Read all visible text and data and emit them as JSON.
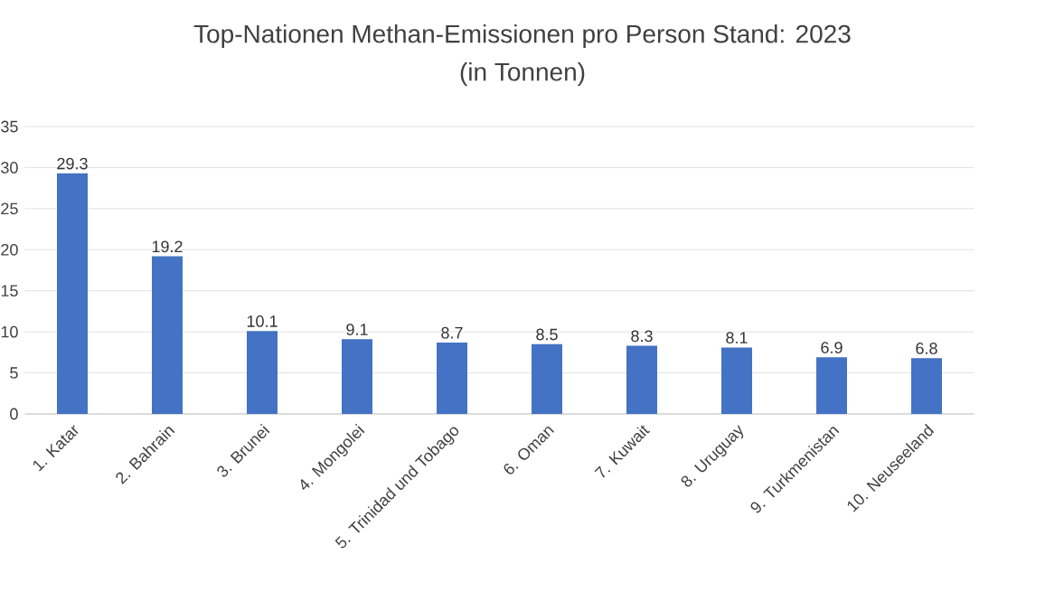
{
  "chart_data": {
    "type": "bar",
    "title": "Top-Nationen Methan-Emissionen pro Person Stand: 2023",
    "subtitle": "(in Tonnen)",
    "categories": [
      "1. Katar",
      "2. Bahrain",
      "3. Brunei",
      "4. Mongolei",
      "5. Trinidad und Tobago",
      "6. Oman",
      "7. Kuwait",
      "8. Uruguay",
      "9. Turkmenistan",
      "10. Neuseeland"
    ],
    "values": [
      29.3,
      19.2,
      10.1,
      9.1,
      8.7,
      8.5,
      8.3,
      8.1,
      6.9,
      6.8
    ],
    "color": "#4472c4",
    "ylim": [
      0,
      35
    ],
    "yticks": [
      0,
      5,
      10,
      15,
      20,
      25,
      30,
      35
    ],
    "grid": "y",
    "data_labels": true
  }
}
